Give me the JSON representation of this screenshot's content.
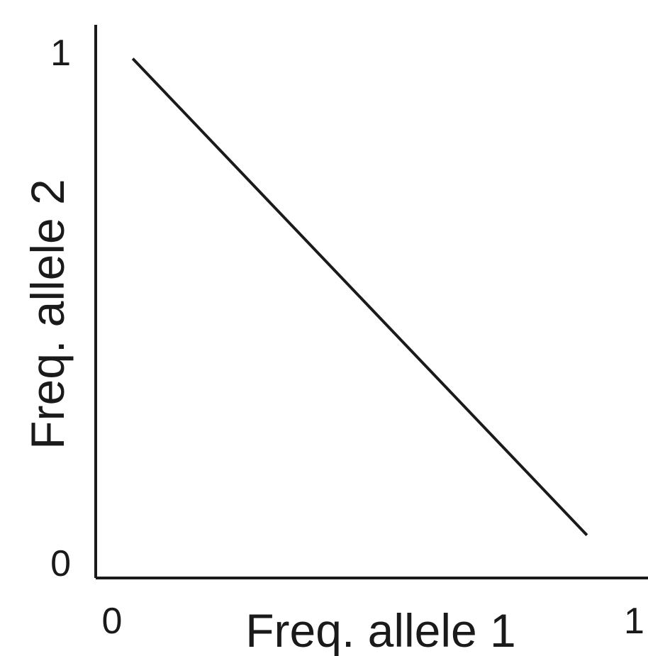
{
  "chart_data": {
    "type": "line",
    "title": "",
    "xlabel": "Freq. allele 1",
    "ylabel": "Freq. allele 2",
    "x_ticks": [
      "0",
      "1"
    ],
    "y_ticks": [
      "0",
      "1"
    ],
    "xlim": [
      0,
      1
    ],
    "ylim": [
      0,
      1
    ],
    "grid": false,
    "series": [
      {
        "x": [
          0.07,
          0.93
        ],
        "y": [
          0.97,
          0.08
        ]
      }
    ],
    "colors": {
      "line": "#1a1a1a",
      "background": "#ffffff"
    }
  }
}
